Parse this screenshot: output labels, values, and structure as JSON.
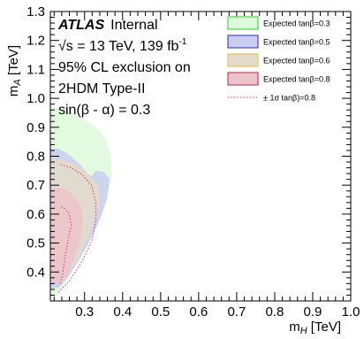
{
  "chart_data": {
    "type": "area",
    "title": "",
    "xlabel": "m_H [TeV]",
    "ylabel": "m_A [TeV]",
    "xlim": [
      0.21,
      1.0
    ],
    "ylim": [
      0.3,
      1.3
    ],
    "x_ticks": [
      "0.3",
      "0.4",
      "0.5",
      "0.6",
      "0.7",
      "0.8",
      "0.9",
      "1.0"
    ],
    "y_ticks": [
      "0.4",
      "0.5",
      "0.6",
      "0.7",
      "0.8",
      "0.9",
      "1.0",
      "1.1",
      "1.2",
      "1.3"
    ],
    "grid": false,
    "legend_position": "top-right",
    "annotations": {
      "experiment": "ATLAS",
      "status": "Internal",
      "energy_line": "√s = 13 TeV, 139 fb",
      "energy_sup": "-1",
      "cl_line": "95% CL exclusion on",
      "model_line": "2HDM Type-II",
      "param_line": "sin(β - α) = 0.3"
    },
    "series": [
      {
        "name": "Expected tanβ=0.3",
        "fill": "#ddfadb",
        "stroke": "#40e040",
        "points": [
          [
            0.225,
            0.315
          ],
          [
            0.245,
            0.35
          ],
          [
            0.275,
            0.42
          ],
          [
            0.31,
            0.5
          ],
          [
            0.34,
            0.58
          ],
          [
            0.362,
            0.66
          ],
          [
            0.372,
            0.74
          ],
          [
            0.368,
            0.81
          ],
          [
            0.355,
            0.86
          ],
          [
            0.325,
            0.905
          ],
          [
            0.29,
            0.935
          ],
          [
            0.262,
            0.955
          ],
          [
            0.245,
            0.965
          ],
          [
            0.232,
            0.968
          ]
        ]
      },
      {
        "name": "Expected tanβ=0.5",
        "fill": "#c9cdf0",
        "stroke": "#4848d8",
        "points": [
          [
            0.232,
            0.345
          ],
          [
            0.255,
            0.38
          ],
          [
            0.285,
            0.44
          ],
          [
            0.315,
            0.51
          ],
          [
            0.34,
            0.58
          ],
          [
            0.358,
            0.65
          ],
          [
            0.366,
            0.72
          ],
          [
            0.352,
            0.745
          ],
          [
            0.33,
            0.75
          ],
          [
            0.318,
            0.73
          ],
          [
            0.305,
            0.745
          ],
          [
            0.285,
            0.775
          ],
          [
            0.255,
            0.81
          ],
          [
            0.232,
            0.825
          ]
        ]
      },
      {
        "name": "Expected tanβ=0.6",
        "fill": "#e3dbc9",
        "stroke": "#e8c060",
        "points": [
          [
            0.236,
            0.36
          ],
          [
            0.258,
            0.395
          ],
          [
            0.285,
            0.45
          ],
          [
            0.31,
            0.52
          ],
          [
            0.33,
            0.59
          ],
          [
            0.34,
            0.65
          ],
          [
            0.335,
            0.7
          ],
          [
            0.31,
            0.74
          ],
          [
            0.28,
            0.77
          ],
          [
            0.25,
            0.785
          ],
          [
            0.236,
            0.79
          ]
        ]
      },
      {
        "name": "Expected tanβ=0.8",
        "fill": "#ecc3cb",
        "stroke": "#d04060",
        "points": [
          [
            0.238,
            0.36
          ],
          [
            0.255,
            0.39
          ],
          [
            0.272,
            0.44
          ],
          [
            0.288,
            0.51
          ],
          [
            0.295,
            0.58
          ],
          [
            0.29,
            0.63
          ],
          [
            0.272,
            0.665
          ],
          [
            0.25,
            0.685
          ],
          [
            0.238,
            0.69
          ]
        ]
      }
    ],
    "band": {
      "name": "± 1σ tanβ)=0.8",
      "stroke": "#e03070",
      "outer": [
        [
          0.232,
          0.33
        ],
        [
          0.26,
          0.37
        ],
        [
          0.295,
          0.44
        ],
        [
          0.32,
          0.51
        ],
        [
          0.33,
          0.58
        ],
        [
          0.33,
          0.64
        ],
        [
          0.318,
          0.7
        ],
        [
          0.295,
          0.735
        ],
        [
          0.265,
          0.76
        ],
        [
          0.24,
          0.77
        ],
        [
          0.232,
          0.772
        ]
      ],
      "inner": [
        [
          0.236,
          0.36
        ],
        [
          0.242,
          0.39
        ],
        [
          0.248,
          0.45
        ],
        [
          0.258,
          0.52
        ],
        [
          0.265,
          0.56
        ],
        [
          0.26,
          0.6
        ],
        [
          0.248,
          0.62
        ],
        [
          0.238,
          0.625
        ]
      ]
    }
  }
}
